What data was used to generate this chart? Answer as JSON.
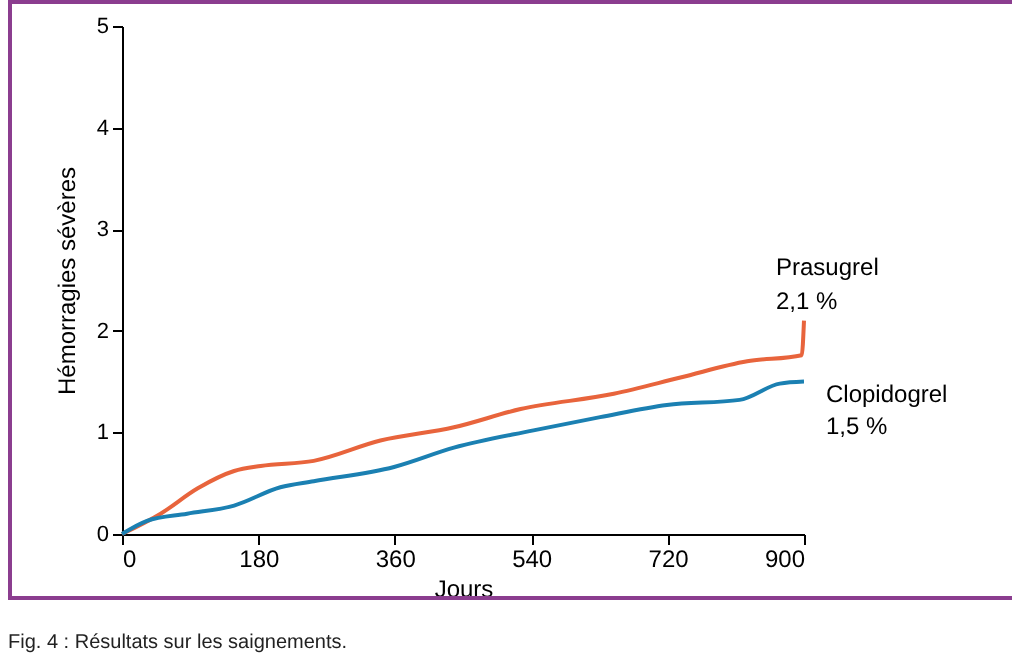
{
  "chart_data": {
    "type": "line",
    "xlabel": "Jours",
    "ylabel": "Hémorragies sévères",
    "xlim": [
      0,
      900
    ],
    "xticks": [
      0,
      180,
      360,
      540,
      720,
      900
    ],
    "ylim": [
      0,
      5
    ],
    "yticks": [
      0,
      1,
      2,
      3,
      4,
      5
    ],
    "grid": false,
    "series": [
      {
        "name": "Prasugrel",
        "color": "#e8643c",
        "x": [
          0,
          51,
          100,
          148,
          183,
          253,
          341,
          438,
          526,
          649,
          737,
          825,
          897,
          900
        ],
        "values": [
          0,
          0.2,
          0.45,
          0.62,
          0.67,
          0.72,
          0.92,
          1.05,
          1.23,
          1.38,
          1.54,
          1.7,
          1.76,
          2.1
        ]
      },
      {
        "name": "Clopidogrel",
        "color": "#1b80b2",
        "x": [
          0,
          33,
          86,
          148,
          209,
          253,
          359,
          438,
          543,
          631,
          719,
          815,
          868,
          900
        ],
        "values": [
          0,
          0.13,
          0.2,
          0.28,
          0.46,
          0.52,
          0.66,
          0.85,
          1.02,
          1.15,
          1.27,
          1.32,
          1.48,
          1.5
        ]
      }
    ],
    "annotations": [
      {
        "text": "2,1 %",
        "x": 900,
        "y": 2.1
      },
      {
        "text": "1,5 %",
        "x": 900,
        "y": 1.5
      },
      "Fig. 4 : Résultats sur les saignements."
    ]
  }
}
